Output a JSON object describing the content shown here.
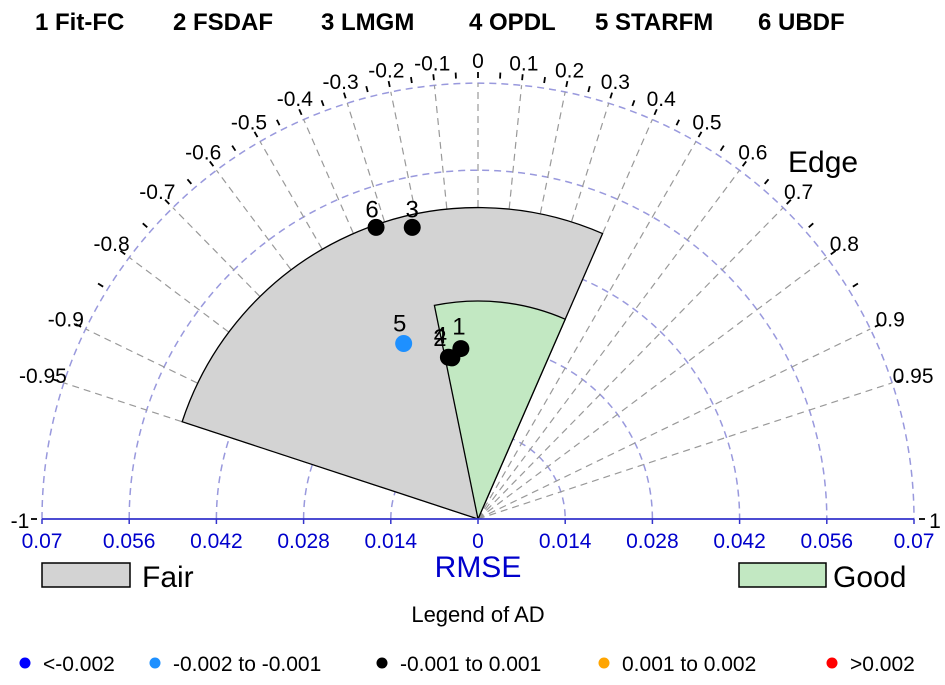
{
  "chart_data": {
    "type": "scatter",
    "subtype": "polar-semicircle",
    "title": "",
    "methods": [
      {
        "id": "1",
        "name": "Fit-FC"
      },
      {
        "id": "2",
        "name": "FSDAF"
      },
      {
        "id": "3",
        "name": "LMGM"
      },
      {
        "id": "4",
        "name": "OPDL"
      },
      {
        "id": "5",
        "name": "STARFM"
      },
      {
        "id": "6",
        "name": "UBDF"
      }
    ],
    "angular_axis": {
      "label": "Edge",
      "ticks": [
        "-1",
        "-0.95",
        "-0.9",
        "-0.8",
        "-0.7",
        "-0.6",
        "-0.5",
        "-0.4",
        "-0.3",
        "-0.2",
        "-0.1",
        "0",
        "0.1",
        "0.2",
        "0.3",
        "0.4",
        "0.5",
        "0.6",
        "0.7",
        "0.8",
        "0.9",
        "0.95",
        "1"
      ],
      "tick_values": [
        -1,
        -0.95,
        -0.9,
        -0.8,
        -0.7,
        -0.6,
        -0.5,
        -0.4,
        -0.3,
        -0.2,
        -0.1,
        0,
        0.1,
        0.2,
        0.3,
        0.4,
        0.5,
        0.6,
        0.7,
        0.8,
        0.9,
        0.95,
        1
      ]
    },
    "radial_axis": {
      "label": "RMSE",
      "max": 0.07,
      "ticks": [
        "0.07",
        "0.056",
        "0.042",
        "0.028",
        "0.014",
        "0",
        "0.014",
        "0.028",
        "0.042",
        "0.056",
        "0.07"
      ],
      "tick_values": [
        -0.07,
        -0.056,
        -0.042,
        -0.028,
        -0.014,
        0,
        0.014,
        0.028,
        0.042,
        0.056,
        0.07
      ],
      "circles": [
        0.014,
        0.028,
        0.042,
        0.056,
        0.07
      ]
    },
    "regions": [
      {
        "name": "Fair",
        "edge_from": -0.95,
        "edge_to": 0.4,
        "rmse_max": 0.05,
        "color": "#d3d3d3"
      },
      {
        "name": "Good",
        "edge_from": -0.2,
        "edge_to": 0.4,
        "rmse_max": 0.035,
        "color": "#c2e8c2"
      }
    ],
    "points": [
      {
        "label": "1",
        "edge": -0.1,
        "rmse": 0.0275,
        "ad_class": "-0.001 to 0.001"
      },
      {
        "label": "2",
        "edge": -0.16,
        "rmse": 0.0262,
        "ad_class": "-0.001 to 0.001"
      },
      {
        "label": "3",
        "edge": -0.22,
        "rmse": 0.048,
        "ad_class": "-0.001 to 0.001"
      },
      {
        "label": "4",
        "edge": -0.18,
        "rmse": 0.0264,
        "ad_class": "-0.001 to 0.001"
      },
      {
        "label": "5",
        "edge": -0.39,
        "rmse": 0.0306,
        "ad_class": "-0.002 to -0.001"
      },
      {
        "label": "6",
        "edge": -0.33,
        "rmse": 0.0496,
        "ad_class": "-0.001 to 0.001"
      }
    ],
    "legend_regions": [
      {
        "name": "Fair",
        "color": "#d3d3d3"
      },
      {
        "name": "Good",
        "color": "#c2e8c2"
      }
    ],
    "ad_legend": {
      "title": "Legend of AD",
      "items": [
        {
          "label": "<-0.002",
          "color": "#0000ff"
        },
        {
          "label": "-0.002 to -0.001",
          "color": "#1e90ff"
        },
        {
          "label": "-0.001 to 0.001",
          "color": "#000000"
        },
        {
          "label": "0.001 to 0.002",
          "color": "#ffa500"
        },
        {
          "label": ">0.002",
          "color": "#ff0000"
        }
      ]
    }
  }
}
